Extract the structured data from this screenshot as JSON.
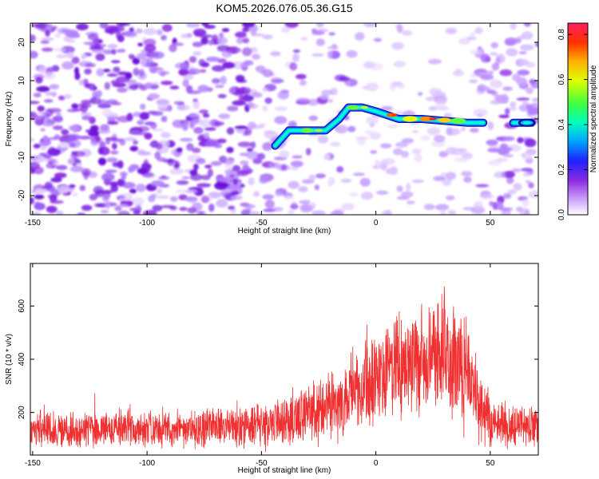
{
  "title": "KOM5.2026.076.05.36.G15",
  "chart_data": [
    {
      "type": "heatmap",
      "title": "KOM5.2026.076.05.36.G15",
      "xlabel": "Height of straight line (km)",
      "ylabel": "Frequency (Hz)",
      "xlim": [
        -151,
        71
      ],
      "ylim": [
        -25,
        25
      ],
      "xticks": [
        -150,
        -100,
        -50,
        0,
        50
      ],
      "yticks": [
        -20,
        -10,
        0,
        10,
        20
      ],
      "colorbar": {
        "label": "Normalized spectral amplitude",
        "range": [
          0.0,
          0.85
        ],
        "ticks": [
          "0.0",
          "0.2",
          "0.4",
          "0.6",
          "0.8"
        ]
      },
      "ridge": {
        "description_points_x": [
          -44,
          -38,
          -30,
          -22,
          -16,
          -12,
          -6,
          0,
          5,
          10,
          20,
          30,
          40,
          47,
          52,
          60,
          65,
          68
        ],
        "description_points_y": [
          -7,
          -3,
          -3,
          -3,
          0,
          3,
          3,
          2,
          1,
          0,
          0,
          -0.5,
          -1,
          -1,
          null,
          -1,
          -1,
          -1
        ],
        "peak_value": 0.85
      }
    },
    {
      "type": "line",
      "xlabel": "Height of straight line (km)",
      "ylabel": "SNR (10 * v/v)",
      "xlim": [
        -151,
        71
      ],
      "ylim": [
        40,
        760
      ],
      "xticks": [
        -150,
        -100,
        -50,
        0,
        50
      ],
      "yticks": [
        200,
        400,
        600
      ],
      "series": [
        {
          "name": "SNR",
          "color": "#f03030",
          "envelope_x": [
            -150,
            -130,
            -110,
            -90,
            -70,
            -50,
            -40,
            -30,
            -20,
            -10,
            0,
            10,
            20,
            30,
            40,
            45,
            50,
            60,
            70
          ],
          "envelope_mean": [
            130,
            135,
            140,
            140,
            145,
            150,
            170,
            200,
            230,
            280,
            330,
            380,
            400,
            410,
            360,
            250,
            170,
            150,
            150
          ],
          "envelope_spread": [
            60,
            60,
            60,
            60,
            60,
            70,
            80,
            90,
            110,
            140,
            160,
            180,
            180,
            180,
            170,
            140,
            80,
            70,
            70
          ]
        }
      ]
    }
  ]
}
